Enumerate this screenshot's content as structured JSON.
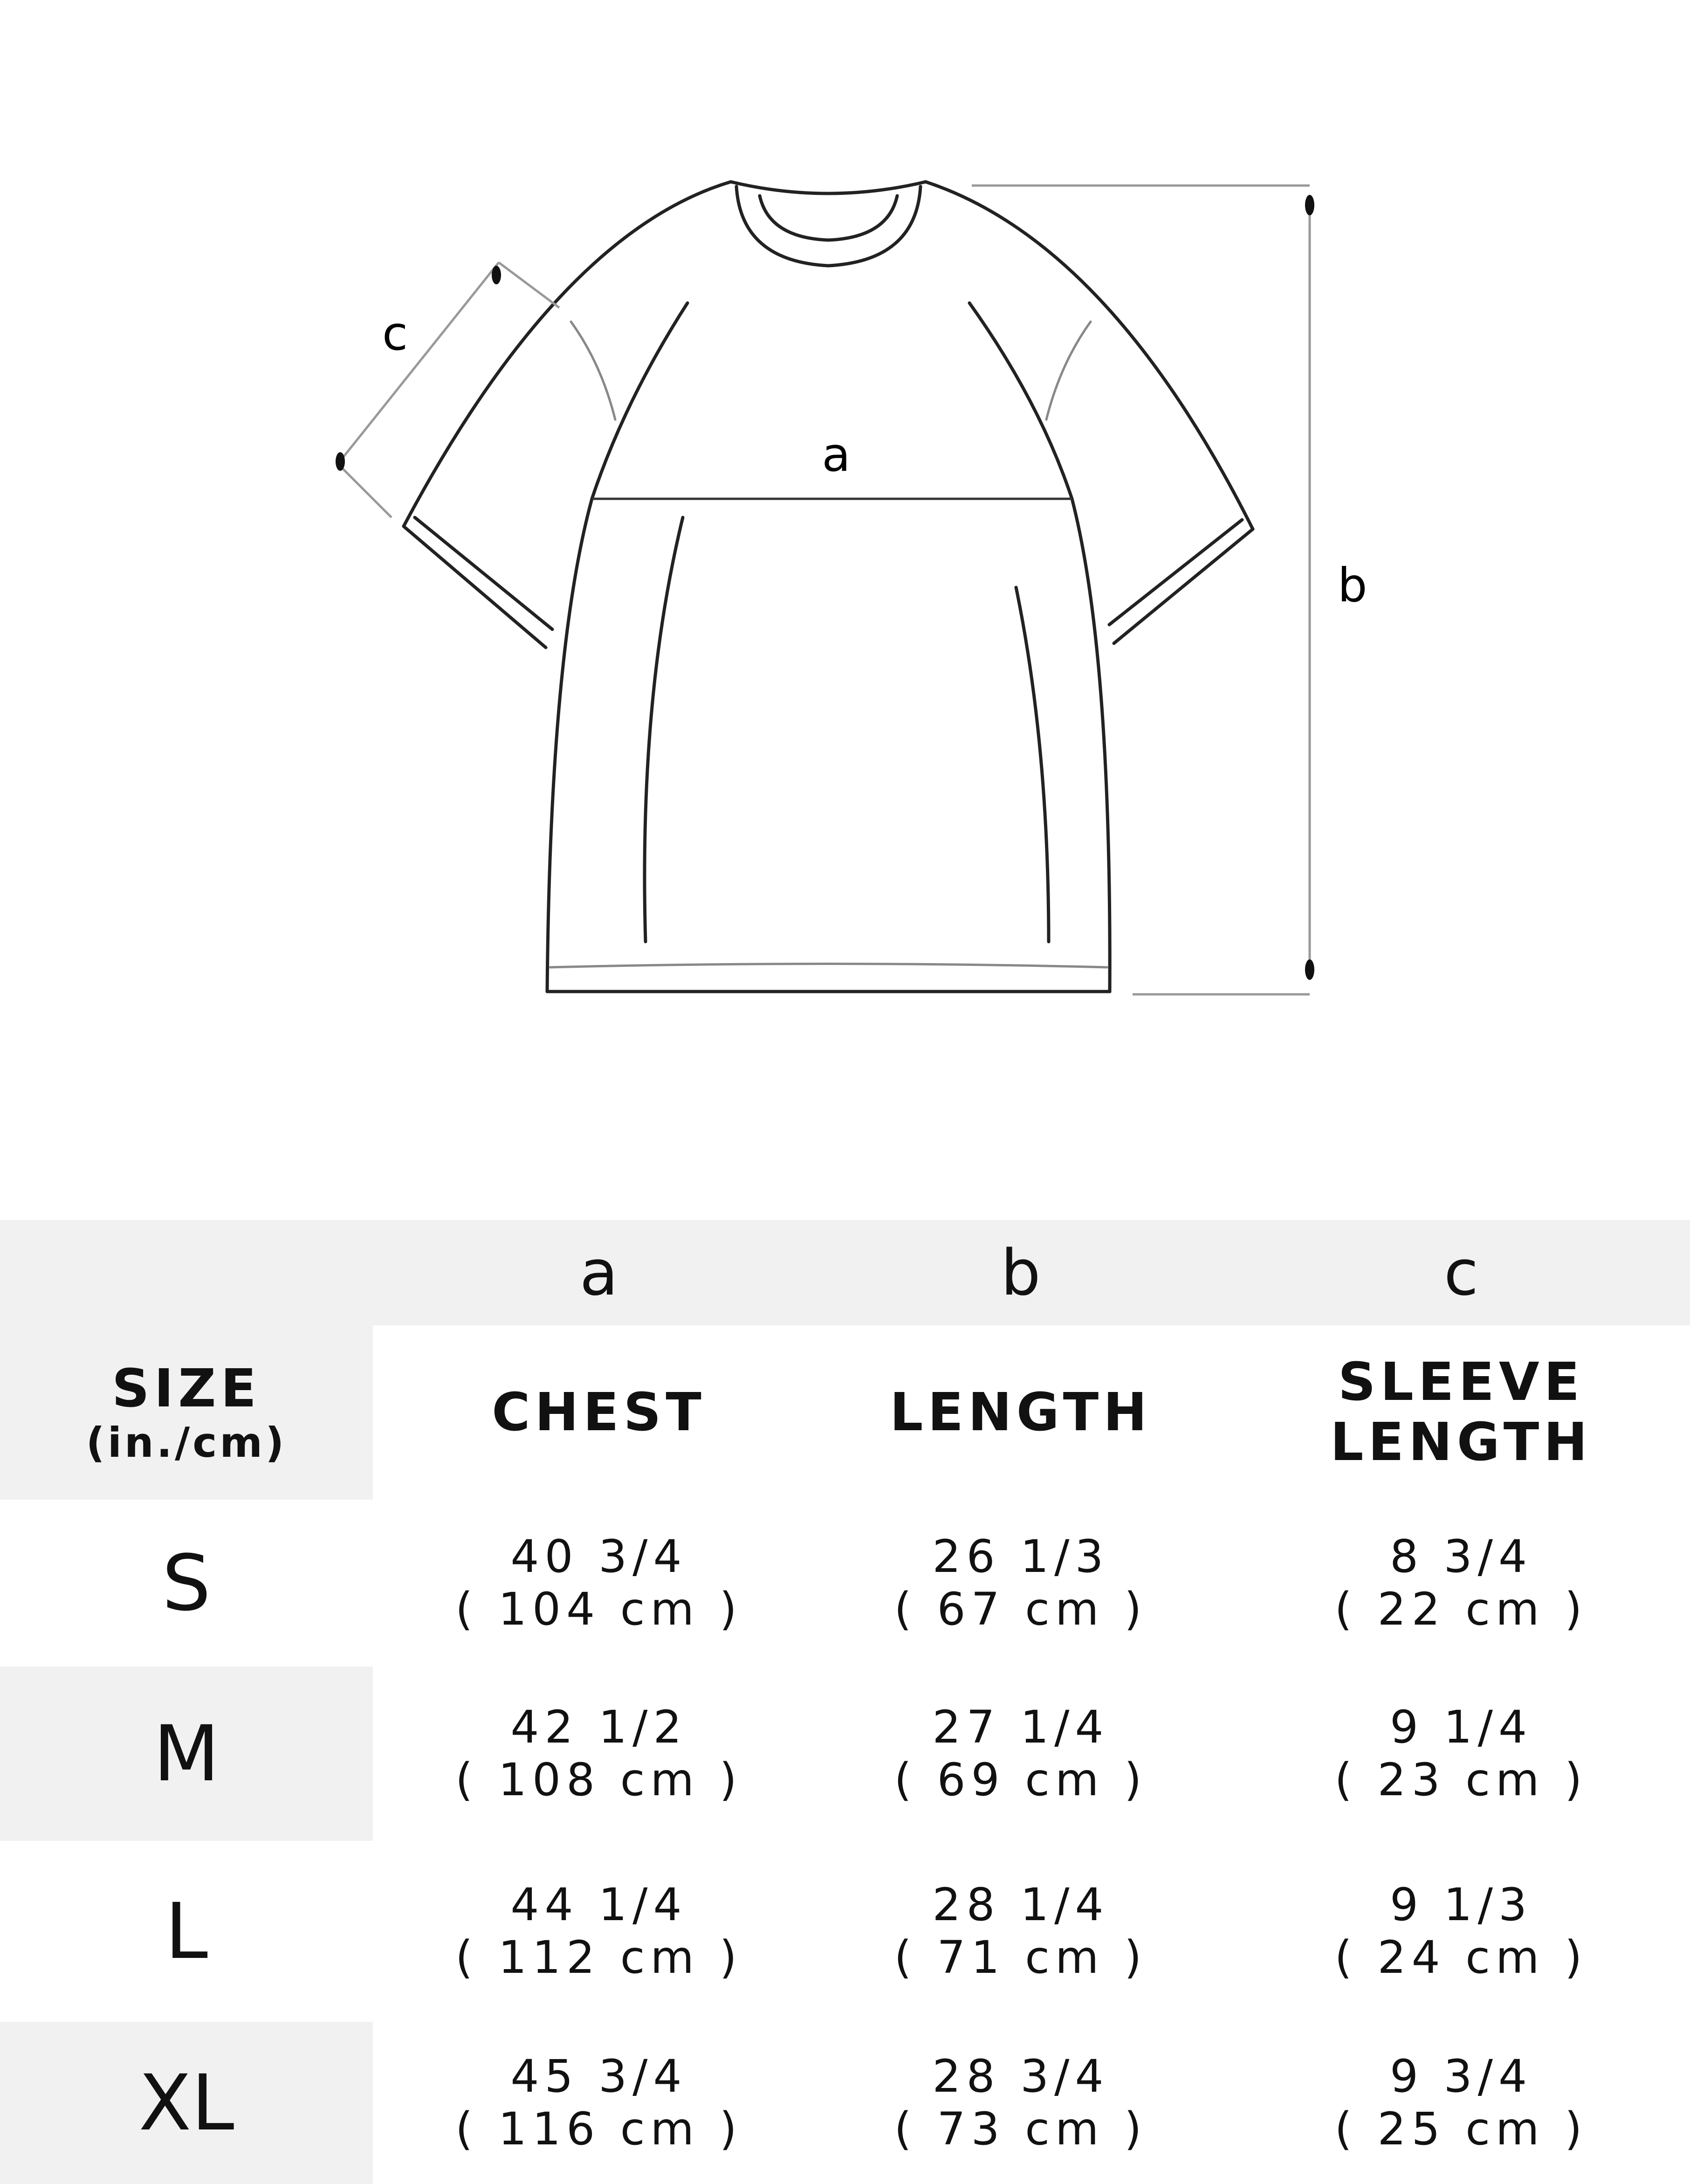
{
  "diagram": {
    "labels": {
      "a": "a",
      "b": "b",
      "c": "c"
    }
  },
  "table": {
    "letters": [
      "a",
      "b",
      "c"
    ],
    "headers": {
      "size": "SIZE",
      "size_unit": "(in./cm)",
      "chest": "CHEST",
      "length": "LENGTH",
      "sleeve_1": "SLEEVE",
      "sleeve_2": "LENGTH"
    },
    "rows": [
      {
        "size": "S",
        "chest_in": "40 3/4",
        "chest_cm": "( 104 cm )",
        "length_in": "26 1/3",
        "length_cm": "( 67 cm )",
        "sleeve_in": "8 3/4",
        "sleeve_cm": "( 22 cm )"
      },
      {
        "size": "M",
        "chest_in": "42 1/2",
        "chest_cm": "( 108 cm )",
        "length_in": "27 1/4",
        "length_cm": "( 69 cm )",
        "sleeve_in": "9 1/4",
        "sleeve_cm": "( 23 cm )"
      },
      {
        "size": "L",
        "chest_in": "44 1/4",
        "chest_cm": "( 112 cm )",
        "length_in": "28 1/4",
        "length_cm": "( 71 cm )",
        "sleeve_in": "9 1/3",
        "sleeve_cm": "( 24 cm )"
      },
      {
        "size": "XL",
        "chest_in": "45 3/4",
        "chest_cm": "( 116 cm )",
        "length_in": "28 3/4",
        "length_cm": "( 73 cm )",
        "sleeve_in": "9 3/4",
        "sleeve_cm": "( 25 cm )"
      }
    ]
  },
  "colors": {
    "band": "#f1f1f1",
    "line": "#222222",
    "dim_line": "#999999"
  }
}
